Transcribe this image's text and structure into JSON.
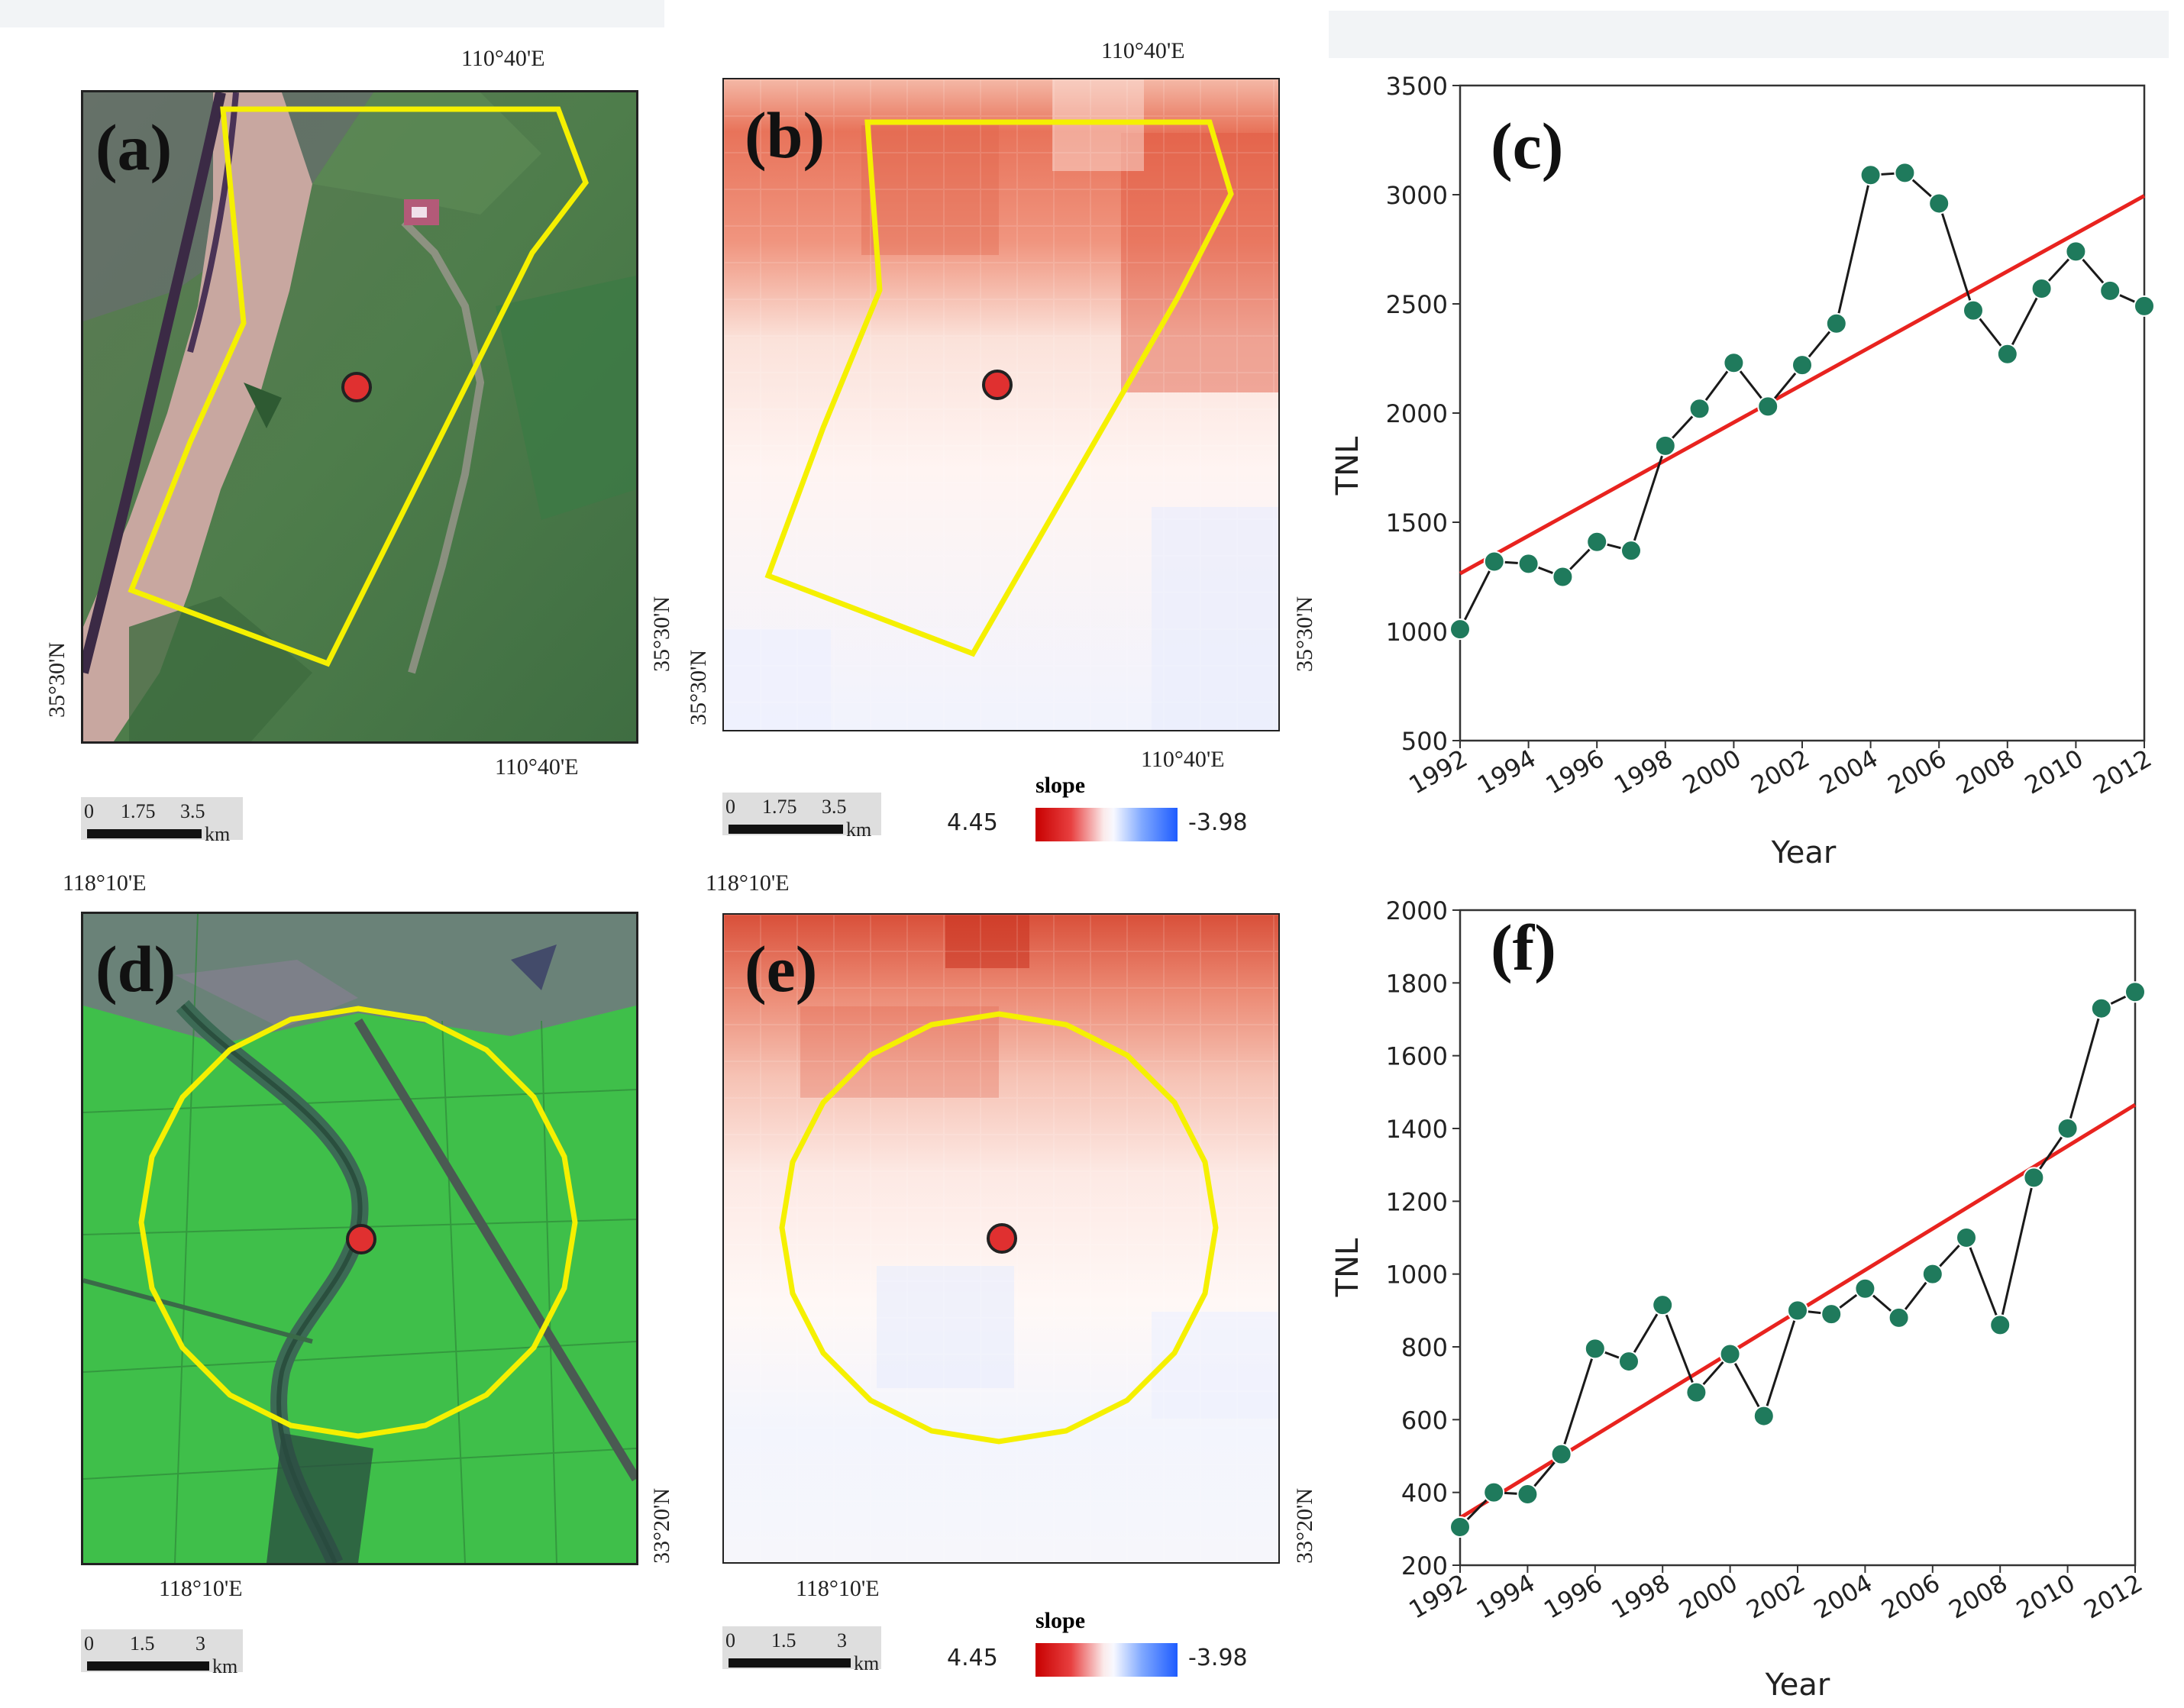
{
  "panels": {
    "a": {
      "tag": "(a)",
      "lon_top": "110°40'E",
      "lon_bottom": "110°40'E",
      "lat_left": "35°30'N",
      "lat_right": "35°30'N"
    },
    "b": {
      "tag": "(b)",
      "lon_top": "110°40'E",
      "lon_bottom": "110°40'E",
      "lat_left": "35°30'N",
      "lat_right": "35°30'N"
    },
    "c": {
      "tag": "(c)"
    },
    "d": {
      "tag": "(d)",
      "lon_top": "118°10'E",
      "lon_bottom": "118°10'E",
      "lat_right": "33°20'N"
    },
    "e": {
      "tag": "(e)",
      "lon_top": "118°10'E",
      "lon_bottom": "118°10'E",
      "lat_right": "33°20'N"
    },
    "f": {
      "tag": "(f)"
    }
  },
  "scalebars": {
    "top": {
      "t0": "0",
      "t1": "1.75",
      "t2": "3.5",
      "unit": "km"
    },
    "bottom": {
      "t0": "0",
      "t1": "1.5",
      "t2": "3",
      "unit": "km"
    }
  },
  "legend": {
    "title": "slope",
    "max": "4.45",
    "min": "-3.98"
  },
  "colors": {
    "trend_line": "#e8231f",
    "series_line": "#1a1a1a",
    "marker": "#1f7a5c",
    "boundary": "#f5f000",
    "site": "#e03030"
  },
  "chart_data": [
    {
      "id": "c",
      "type": "line",
      "x": [
        1992,
        1993,
        1994,
        1995,
        1996,
        1997,
        1998,
        1999,
        2000,
        2001,
        2002,
        2003,
        2004,
        2005,
        2006,
        2007,
        2008,
        2009,
        2010,
        2011,
        2012
      ],
      "series": [
        {
          "name": "TNL",
          "values": [
            1010,
            1320,
            1310,
            1250,
            1410,
            1370,
            1850,
            2020,
            2230,
            2030,
            2220,
            2410,
            3090,
            3100,
            2960,
            2470,
            2270,
            2570,
            2740,
            2560,
            2490
          ]
        },
        {
          "name": "trend",
          "start": [
            1992,
            1265
          ],
          "end": [
            2012,
            2995
          ]
        }
      ],
      "xlabel": "Year",
      "ylabel": "TNL",
      "ylim": [
        500,
        3500
      ],
      "yticks": [
        500,
        1000,
        1500,
        2000,
        2500,
        3000,
        3500
      ],
      "xticks": [
        1992,
        1994,
        1996,
        1998,
        2000,
        2002,
        2004,
        2006,
        2008,
        2010,
        2012
      ],
      "grid": false
    },
    {
      "id": "f",
      "type": "line",
      "x": [
        1992,
        1993,
        1994,
        1995,
        1996,
        1997,
        1998,
        1999,
        2000,
        2001,
        2002,
        2003,
        2004,
        2005,
        2006,
        2007,
        2008,
        2009,
        2010,
        2011,
        2012
      ],
      "series": [
        {
          "name": "TNL",
          "values": [
            305,
            400,
            395,
            505,
            795,
            760,
            915,
            675,
            780,
            610,
            900,
            890,
            960,
            880,
            1000,
            1100,
            860,
            1265,
            1400,
            1730,
            1775
          ]
        },
        {
          "name": "trend",
          "start": [
            1992,
            330
          ],
          "end": [
            2012,
            1465
          ]
        }
      ],
      "xlabel": "Year",
      "ylabel": "TNL",
      "ylim": [
        200,
        2000
      ],
      "yticks": [
        200,
        400,
        600,
        800,
        1000,
        1200,
        1400,
        1600,
        1800,
        2000
      ],
      "xticks": [
        1992,
        1994,
        1996,
        1998,
        2000,
        2002,
        2004,
        2006,
        2008,
        2010,
        2012
      ],
      "grid": false
    }
  ]
}
